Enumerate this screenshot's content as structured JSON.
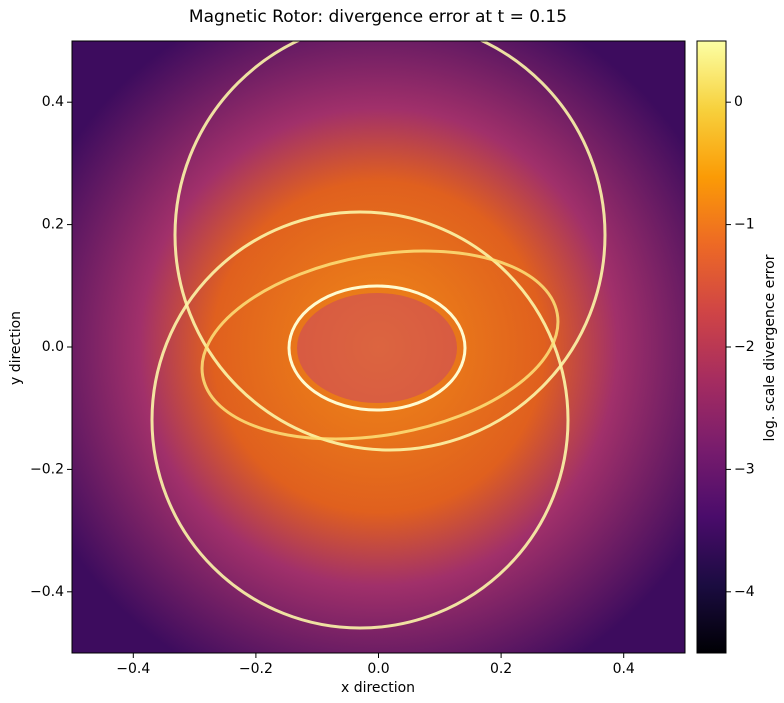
{
  "chart_data": {
    "type": "heatmap",
    "title": "Magnetic Rotor: divergence error at t = 0.15",
    "x_label": "x direction",
    "y_label": "y direction",
    "colorbar_label": "log. scale divergence error",
    "colormap": "inferno",
    "xlim": [
      -0.5,
      0.5
    ],
    "ylim": [
      -0.5,
      0.5
    ],
    "xticks": [
      {
        "value": -0.4,
        "label": "−0.4"
      },
      {
        "value": -0.2,
        "label": "−0.2"
      },
      {
        "value": 0,
        "label": "0.0"
      },
      0.2,
      0.4
    ],
    "yticks": [
      {
        "value": -0.4,
        "label": "−0.4"
      },
      {
        "value": -0.2,
        "label": "−0.2"
      },
      {
        "value": 0,
        "label": "0.0"
      },
      0.2,
      0.4
    ],
    "clim": [
      -4.5,
      0.5
    ],
    "cticks": [
      {
        "value": -4,
        "label": "−4"
      },
      {
        "value": -3,
        "label": "−3"
      },
      {
        "value": -2,
        "label": "−2"
      },
      {
        "value": -1,
        "label": "−1"
      },
      0
    ]
  }
}
